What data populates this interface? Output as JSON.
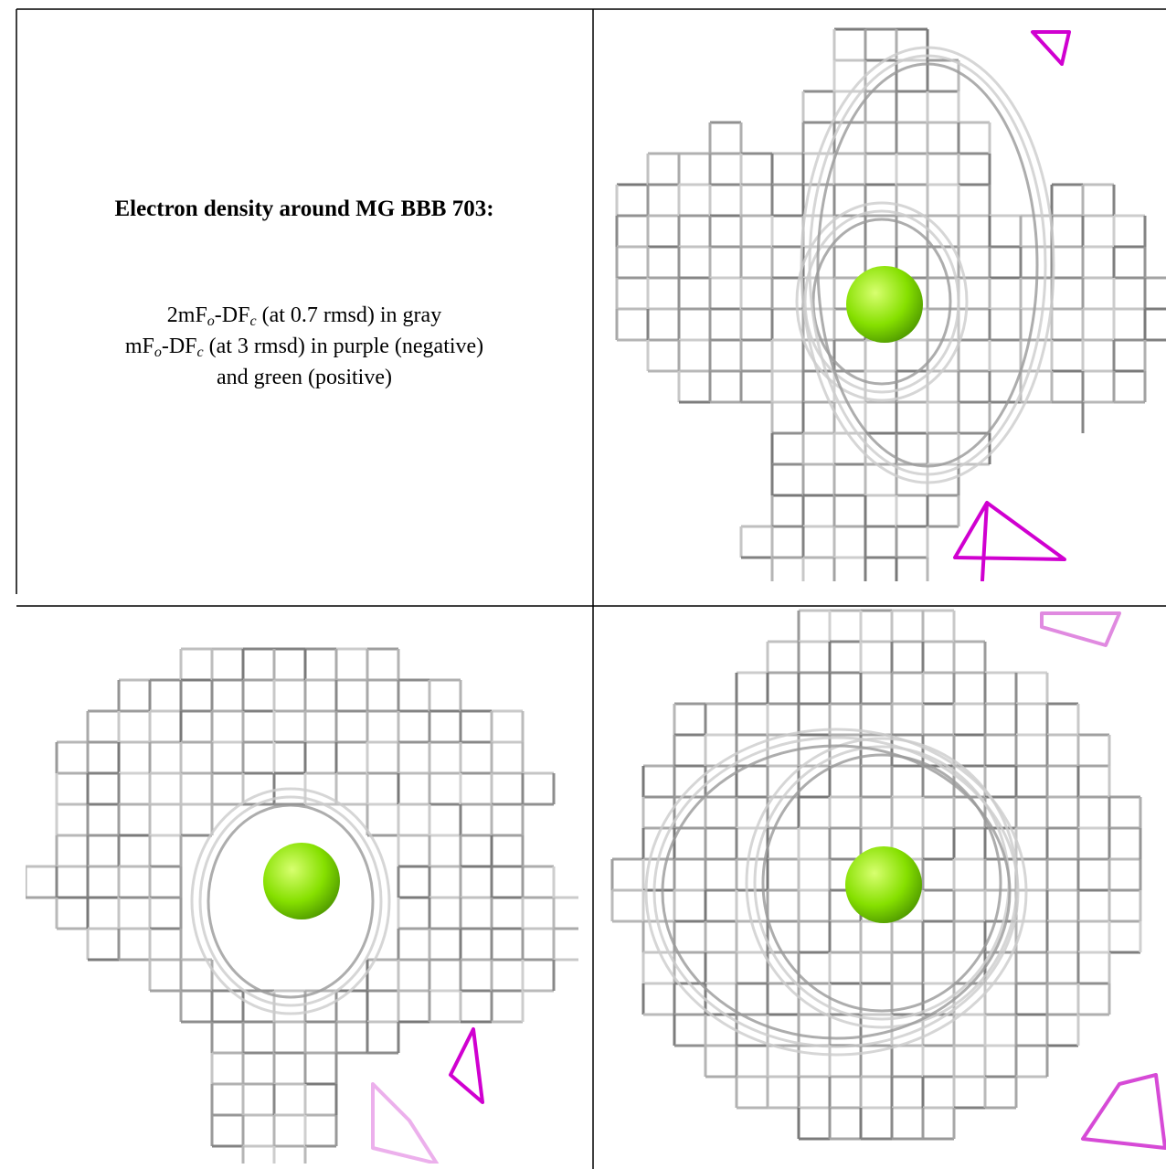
{
  "heading": "Electron density around MG BBB 703:",
  "legend": {
    "line1": [
      "2mF",
      "o",
      "-DF",
      "c",
      " (at 0.7 rmsd) in gray"
    ],
    "line2": [
      "mF",
      "o",
      "-DF",
      "c",
      " (at 3 rmsd) in purple (negative)"
    ],
    "line3": [
      "and green (positive)"
    ]
  }
}
